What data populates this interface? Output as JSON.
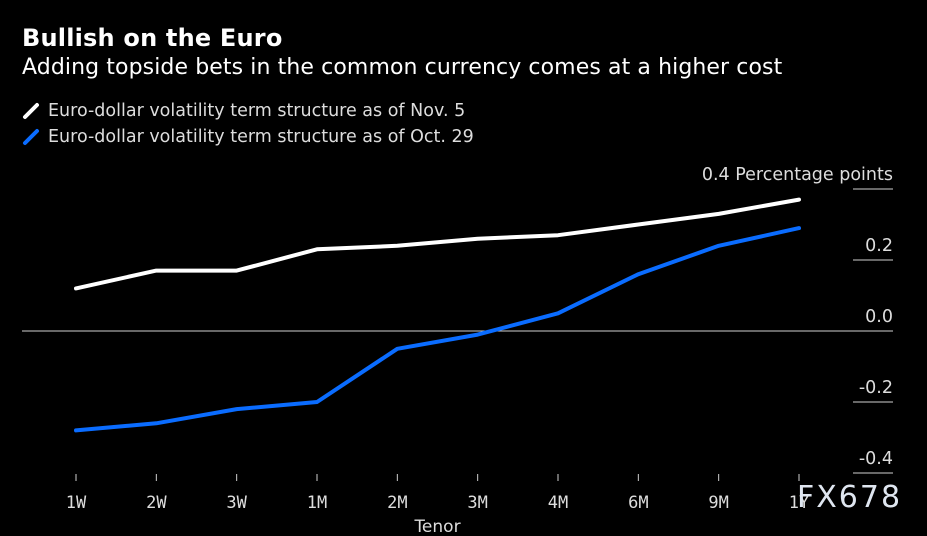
{
  "watermark": "FX678",
  "chart_data": {
    "type": "line",
    "title": "Bullish on the Euro",
    "subtitle": "Adding topside bets in the common currency comes at a higher cost",
    "xlabel": "Tenor",
    "ylabel": "Percentage points",
    "y_unit_label": "Percentage points",
    "categories": [
      "1W",
      "2W",
      "3W",
      "1M",
      "2M",
      "3M",
      "4M",
      "6M",
      "9M",
      "1Y"
    ],
    "ylim": [
      -0.4,
      0.4
    ],
    "yticks": [
      0.4,
      0.2,
      0.0,
      -0.2,
      -0.4
    ],
    "ytick_labels": [
      "0.4",
      "0.2",
      "0.0",
      "-0.2",
      "-0.4"
    ],
    "grid": true,
    "legend_position": "top-left",
    "series": [
      {
        "name": "Euro-dollar volatility term structure as of Nov. 5",
        "color": "#ffffff",
        "values": [
          0.12,
          0.17,
          0.17,
          0.23,
          0.24,
          0.26,
          0.27,
          0.3,
          0.33,
          0.37
        ]
      },
      {
        "name": "Euro-dollar volatility term structure as of Oct. 29",
        "color": "#0a6cff",
        "values": [
          -0.28,
          -0.26,
          -0.22,
          -0.2,
          -0.05,
          -0.01,
          0.05,
          0.16,
          0.24,
          0.29
        ]
      }
    ]
  }
}
